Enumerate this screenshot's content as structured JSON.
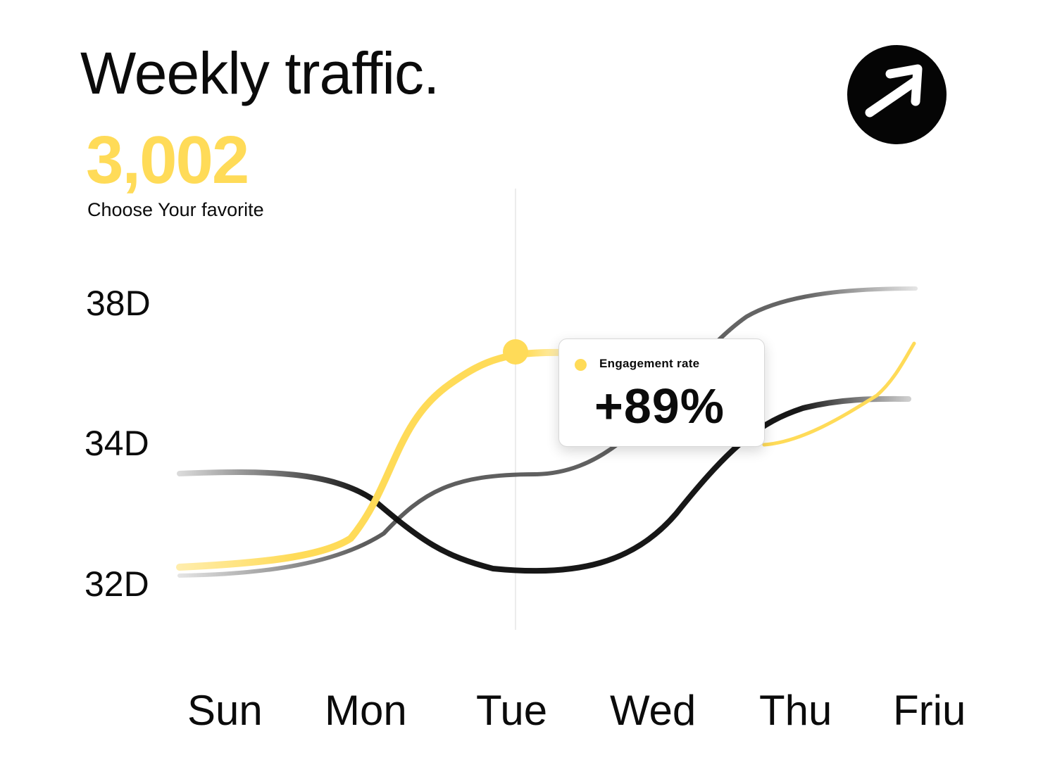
{
  "header": {
    "title": "Weekly traffic.",
    "total_value": "3,002",
    "subtitle": "Choose Your favorite"
  },
  "action_button": {
    "icon": "arrow-up-right-icon"
  },
  "tooltip": {
    "label": "Engagement rate",
    "value": "+89%"
  },
  "colors": {
    "accent": "#FFDB58",
    "dark": "#0b0b0b",
    "gray": "#4a4a4a"
  },
  "chart_data": {
    "type": "line",
    "title": "Weekly traffic.",
    "categories": [
      "Sun",
      "Mon",
      "Tue",
      "Wed",
      "Thu",
      "Friu"
    ],
    "y_ticks": [
      "38D",
      "34D",
      "32D"
    ],
    "legend": "none",
    "grid": false,
    "highlight": {
      "category": "Tue",
      "label": "Engagement rate",
      "value": "+89%"
    },
    "series": [
      {
        "color": "#FFDB58"
      },
      {
        "color": "#0b0b0b"
      },
      {
        "color": "#4a4a4a"
      }
    ]
  }
}
